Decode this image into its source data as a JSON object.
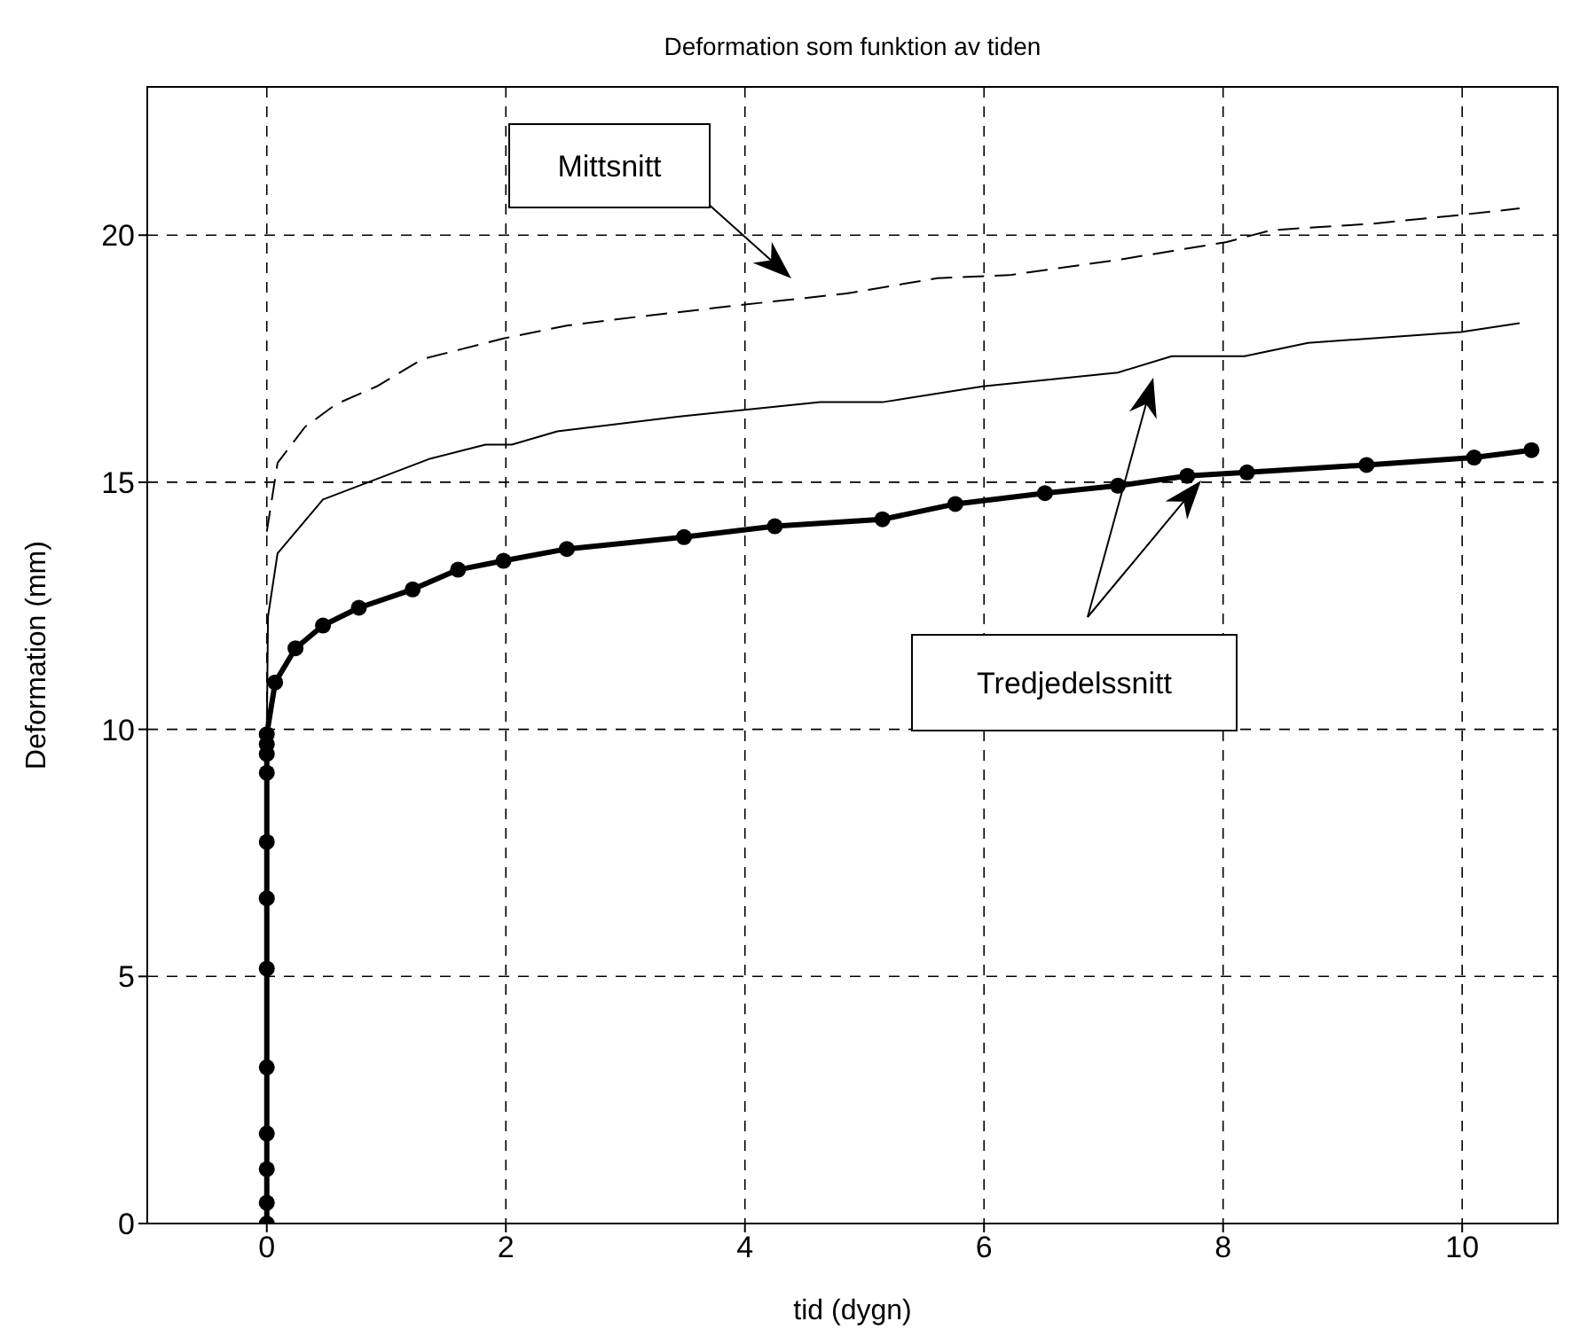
{
  "chart_data": {
    "type": "line",
    "title": "Deformation som funktion av tiden",
    "xlabel": "tid (dygn)",
    "ylabel": "Deformation (mm)",
    "xlim": [
      -1,
      10.8
    ],
    "xticks": [
      0,
      2,
      4,
      6,
      8,
      10
    ],
    "ylim": [
      0,
      23
    ],
    "yticks": [
      0,
      5,
      10,
      15,
      20
    ],
    "grid": true,
    "series": [
      {
        "color": "#000000",
        "line_style": "dashed",
        "marker": "none",
        "x": [
          0,
          0.09,
          0.32,
          0.58,
          0.92,
          1.3,
          1.98,
          2.51,
          3.11,
          3.98,
          4.85,
          5.61,
          6.21,
          7.12,
          8.03,
          8.4,
          9.24,
          9.99,
          10.48
        ],
        "values": [
          14.0,
          15.39,
          16.12,
          16.58,
          16.94,
          17.49,
          17.91,
          18.17,
          18.35,
          18.59,
          18.82,
          19.13,
          19.19,
          19.5,
          19.86,
          20.1,
          20.23,
          20.41,
          20.54
        ]
      },
      {
        "color": "#000000",
        "line_style": "solid",
        "marker": "none",
        "x": [
          0,
          0,
          0.01,
          0.09,
          0.47,
          1.37,
          1.83,
          2.05,
          2.43,
          3.49,
          4.63,
          5.15,
          5.99,
          7.12,
          7.57,
          8.18,
          8.71,
          9.99,
          10.48
        ],
        "values": [
          0,
          9.9,
          12.28,
          13.56,
          14.65,
          15.48,
          15.76,
          15.76,
          16.03,
          16.34,
          16.62,
          16.62,
          16.94,
          17.22,
          17.55,
          17.55,
          17.82,
          18.04,
          18.22
        ]
      },
      {
        "color": "#000000",
        "line_style": "solid",
        "marker": "circle",
        "x": [
          0,
          0,
          0,
          0,
          0,
          0,
          0,
          0,
          0,
          0,
          0,
          0,
          0.07,
          0.24,
          0.47,
          0.77,
          1.22,
          1.6,
          1.98,
          2.51,
          3.49,
          4.25,
          5.15,
          5.76,
          6.51,
          7.12,
          7.7,
          8.2,
          9.2,
          10.1,
          10.58
        ],
        "values": [
          0,
          0.42,
          1.1,
          1.82,
          3.16,
          5.16,
          6.58,
          7.72,
          9.12,
          9.5,
          9.7,
          9.9,
          10.95,
          11.64,
          12.1,
          12.46,
          12.83,
          13.23,
          13.41,
          13.65,
          13.89,
          14.11,
          14.25,
          14.56,
          14.78,
          14.93,
          15.13,
          15.2,
          15.35,
          15.5,
          15.65
        ]
      }
    ],
    "annotations": [
      "Mittsnitt",
      "Tredjedelssnitt"
    ]
  }
}
